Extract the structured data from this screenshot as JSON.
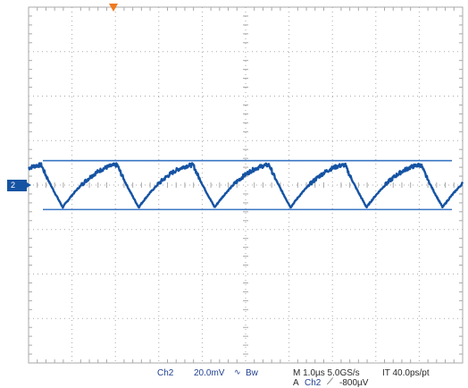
{
  "channel": {
    "marker": "2",
    "name": "Ch2",
    "scale": "20.0mV",
    "coupling_icon": "ac-coupling-icon",
    "bandwidth_limit": "Bw"
  },
  "timebase": {
    "horizontal": "M 1.0µs 5.0GS/s",
    "interpolation": "IT 40.0ps/pt"
  },
  "trigger": {
    "prefix": "A",
    "source": "Ch2",
    "slope_icon": "rising-edge-icon",
    "level": "-800µV"
  },
  "colors": {
    "trace": "#1553a3",
    "cursor": "#3a76c4",
    "grid": "#a9a9a9",
    "trigger_marker": "#f07a1f"
  },
  "chart_data": {
    "type": "line",
    "grid_divisions": {
      "x": 10,
      "y": 8
    },
    "x_unit_per_div": "1.0µs",
    "y_unit_per_div": "20.0mV",
    "xlim_div": [
      0,
      10
    ],
    "ylim_div": [
      -4,
      4
    ],
    "cursors_div": [
      0.55,
      -0.55
    ],
    "waveform": {
      "shape": "triangular-ripple",
      "cycles": 6,
      "period_div": 1.75,
      "peak_div": 0.45,
      "trough_div": -0.5
    }
  }
}
